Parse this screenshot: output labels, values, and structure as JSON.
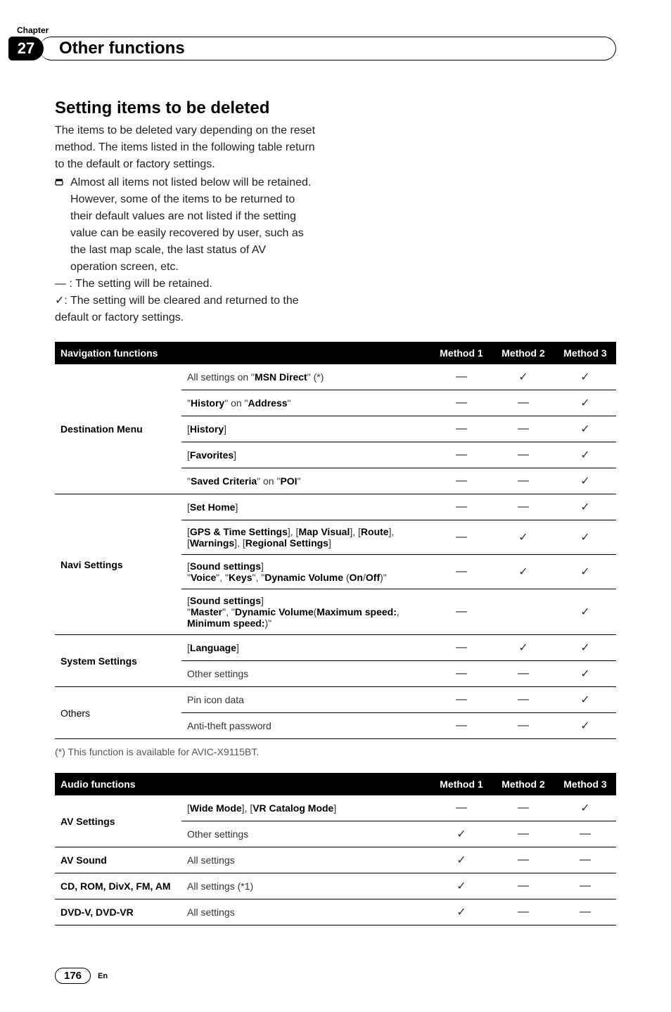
{
  "chapter": {
    "label": "Chapter",
    "number": "27",
    "title": "Other functions"
  },
  "section": {
    "title": "Setting items to be deleted",
    "intro": "The items to be deleted vary depending on the reset method. The items listed in the following table return to the default or factory settings.",
    "bullet": "Almost all items not listed below will be retained. However, some of the items to be returned to their default values are not listed if the setting value can be easily recovered by user, such as the last map scale, the last status of AV operation screen, etc.",
    "legend_dash": "— : The setting will be retained.",
    "legend_check": "✓: The setting will be cleared and returned to the default or factory settings."
  },
  "symbols": {
    "dash": "—",
    "check": "✓"
  },
  "nav_table": {
    "header": {
      "title": "Navigation functions",
      "m1": "Method 1",
      "m2": "Method 2",
      "m3": "Method 3"
    },
    "groups": [
      {
        "cat": "Destination Menu",
        "cat_bold": true,
        "rows": [
          {
            "html": "All settings on \"<b>MSN Direct</b>\" (*)",
            "m": [
              "—",
              "✓",
              "✓"
            ]
          },
          {
            "html": "\"<b>History</b>\" on \"<b>Address</b>\"",
            "m": [
              "—",
              "—",
              "✓"
            ]
          },
          {
            "html": "[<b>History</b>]",
            "m": [
              "—",
              "—",
              "✓"
            ]
          },
          {
            "html": "[<b>Favorites</b>]",
            "m": [
              "—",
              "—",
              "✓"
            ]
          },
          {
            "html": "\"<b>Saved Criteria</b>\" on \"<b>POI</b>\"",
            "m": [
              "—",
              "—",
              "✓"
            ]
          }
        ]
      },
      {
        "cat": "Navi Settings",
        "cat_bold": true,
        "rows": [
          {
            "html": "[<b>Set Home</b>]",
            "m": [
              "—",
              "—",
              "✓"
            ]
          },
          {
            "html": "[<b>GPS & Time Settings</b>], [<b>Map Visual</b>], [<b>Route</b>], [<b>Warnings</b>], [<b>Regional Settings</b>]",
            "m": [
              "—",
              "✓",
              "✓"
            ]
          },
          {
            "html": "[<b>Sound settings</b>]<br>\"<b>Voice</b>\", \"<b>Keys</b>\", \"<b>Dynamic Volume</b> (<b>On</b>/<b>Off</b>)\"",
            "m": [
              "—",
              "✓",
              "✓"
            ]
          },
          {
            "html": "[<b>Sound settings</b>]<br>\"<b>Master</b>\", \"<b>Dynamic Volume</b>(<b>Maximum speed:</b>, <b>Minimum speed:</b>)\"",
            "m": [
              "—",
              "",
              "✓"
            ]
          }
        ]
      },
      {
        "cat": "System Settings",
        "cat_bold": true,
        "rows": [
          {
            "html": "[<b>Language</b>]",
            "m": [
              "—",
              "✓",
              "✓"
            ]
          },
          {
            "html": "Other settings",
            "m": [
              "—",
              "—",
              "✓"
            ]
          }
        ]
      },
      {
        "cat": "Others",
        "cat_bold": false,
        "rows": [
          {
            "html": "Pin icon data",
            "m": [
              "—",
              "—",
              "✓"
            ]
          },
          {
            "html": "Anti-theft password",
            "m": [
              "—",
              "—",
              "✓"
            ]
          }
        ]
      }
    ],
    "footnote": "(*) This function is available for AVIC-X9115BT."
  },
  "audio_table": {
    "header": {
      "title": "Audio functions",
      "m1": "Method 1",
      "m2": "Method 2",
      "m3": "Method 3"
    },
    "groups": [
      {
        "cat": "AV Settings",
        "cat_bold": true,
        "rows": [
          {
            "html": "[<b>Wide Mode</b>], [<b>VR Catalog Mode</b>]",
            "m": [
              "—",
              "—",
              "✓"
            ]
          },
          {
            "html": "Other settings",
            "m": [
              "✓",
              "—",
              "—"
            ]
          }
        ]
      },
      {
        "cat": "AV Sound",
        "cat_bold": true,
        "rows": [
          {
            "html": "All settings",
            "m": [
              "✓",
              "—",
              "—"
            ]
          }
        ]
      },
      {
        "cat": "CD, ROM, DivX, FM, AM",
        "cat_bold": true,
        "rows": [
          {
            "html": "All settings (*1)",
            "m": [
              "✓",
              "—",
              "—"
            ]
          }
        ]
      },
      {
        "cat": "DVD-V, DVD-VR",
        "cat_bold": true,
        "rows": [
          {
            "html": "All settings",
            "m": [
              "✓",
              "—",
              "—"
            ]
          }
        ]
      }
    ]
  },
  "footer": {
    "page": "176",
    "lang": "En"
  },
  "style": {
    "background": "#ffffff",
    "text": "#000000",
    "table_header_bg": "#000000",
    "table_header_fg": "#ffffff",
    "border_color": "#000000",
    "fontsize_body": 16,
    "fontsize_table": 14,
    "fontsize_title": 24
  }
}
